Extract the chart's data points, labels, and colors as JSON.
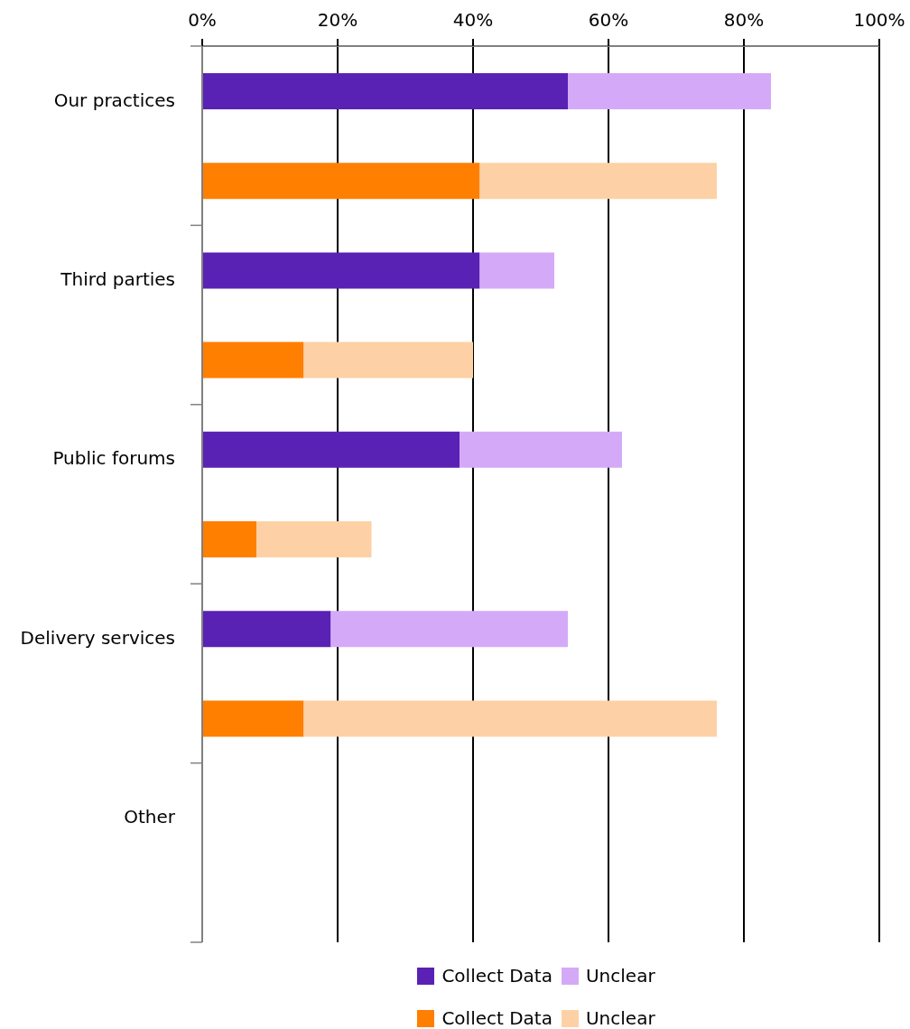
{
  "chart_data": {
    "type": "bar",
    "orientation": "horizontal",
    "stacked": true,
    "categories": [
      "Our practices",
      null,
      "Third parties",
      null,
      "Public forums",
      null,
      "Delivery services",
      null,
      "Other",
      null
    ],
    "series": [
      {
        "name": "Collect Data",
        "color": "#5a21b5",
        "values": [
          54,
          null,
          41,
          null,
          38,
          null,
          19,
          null,
          null,
          null
        ]
      },
      {
        "name": "Unclear",
        "color": "#d4aaf8",
        "values": [
          30,
          null,
          11,
          null,
          24,
          null,
          35,
          null,
          null,
          null
        ]
      },
      {
        "name": "Collect Data",
        "color": "#ff7f00",
        "values": [
          null,
          41,
          null,
          15,
          null,
          8,
          null,
          15,
          null,
          null
        ]
      },
      {
        "name": "Unclear",
        "color": "#fdd1a5",
        "values": [
          null,
          35,
          null,
          25,
          null,
          17,
          null,
          61,
          null,
          null
        ]
      }
    ],
    "xlim": [
      0,
      100
    ],
    "xticks": [
      {
        "value": 0,
        "label": "0%"
      },
      {
        "value": 20,
        "label": "20%"
      },
      {
        "value": 40,
        "label": "40%"
      },
      {
        "value": 60,
        "label": "60%"
      },
      {
        "value": 80,
        "label": "80%"
      },
      {
        "value": 100,
        "label": "100%"
      }
    ],
    "grid": "x",
    "legend": "bottom"
  }
}
